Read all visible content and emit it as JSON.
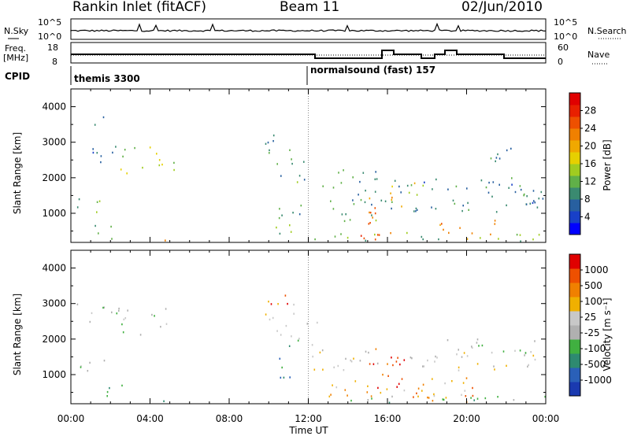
{
  "header": {
    "title": "Rankin Inlet (fitACF)",
    "beam": "Beam 11",
    "date": "02/Jun/2010"
  },
  "noise_panel": {
    "left_label": "N.Sky",
    "left_ticks": [
      "10^5",
      "10^0"
    ],
    "right_label": "N.Search",
    "right_ticks": [
      "10^5",
      "10^0"
    ]
  },
  "freq_panel": {
    "left_label_1": "Freq.",
    "left_label_2": "[MHz]",
    "left_ticks": [
      "18",
      "8"
    ],
    "right_label": "Nave",
    "right_ticks": [
      "60",
      "0"
    ]
  },
  "cpid_panel": {
    "label": "CPID",
    "programs": [
      {
        "name": "themis 3300",
        "start_hour": 0
      },
      {
        "name": "normalsound (fast) 157",
        "start_hour": 12
      }
    ]
  },
  "chart_data": [
    {
      "type": "heatmap",
      "title": "",
      "xlabel": "Time UT",
      "ylabel": "Slant Range [km]",
      "xlim_hours": [
        0,
        24
      ],
      "ylim": [
        180,
        4500
      ],
      "yticks": [
        1000,
        2000,
        3000,
        4000
      ],
      "xticks": [
        "00:00",
        "04:00",
        "08:00",
        "12:00",
        "16:00",
        "20:00",
        "00:00"
      ],
      "colorbar": {
        "label": "Power [dB]",
        "ticks": [
          "28",
          "24",
          "20",
          "16",
          "12",
          "8",
          "4"
        ],
        "colors": [
          "#0000ff",
          "#1840c8",
          "#2860a0",
          "#3a8a70",
          "#60b048",
          "#a0cc20",
          "#e6d000",
          "#f0a800",
          "#f08000",
          "#ee5000",
          "#e82000",
          "#e00000"
        ]
      },
      "blobs": [
        {
          "t": [
            0.3,
            2.5
          ],
          "r": [
            2400,
            3000
          ],
          "v": 6
        },
        {
          "t": [
            0.8,
            1.8
          ],
          "r": [
            3300,
            3700
          ],
          "v": 6
        },
        {
          "t": [
            2.3,
            5.3
          ],
          "r": [
            2100,
            2900
          ],
          "v": 14
        },
        {
          "t": [
            0.3,
            2.5
          ],
          "r": [
            1000,
            1400
          ],
          "v": 10
        },
        {
          "t": [
            1.2,
            2.6
          ],
          "r": [
            250,
            700
          ],
          "v": 12
        },
        {
          "t": [
            2.6,
            2.9
          ],
          "r": [
            190,
            450
          ],
          "v": 26
        },
        {
          "t": [
            4.6,
            5.0
          ],
          "r": [
            190,
            550
          ],
          "v": 26
        },
        {
          "t": [
            9.7,
            11.3
          ],
          "r": [
            2000,
            3200
          ],
          "v": 8
        },
        {
          "t": [
            10.0,
            11.8
          ],
          "r": [
            250,
            1200
          ],
          "v": 10
        },
        {
          "t": [
            11.2,
            12.0
          ],
          "r": [
            1600,
            2600
          ],
          "v": 9
        },
        {
          "t": [
            12.0,
            15.5
          ],
          "r": [
            1500,
            2200
          ],
          "v": 8
        },
        {
          "t": [
            12.2,
            16.0
          ],
          "r": [
            700,
            1400
          ],
          "v": 10
        },
        {
          "t": [
            12.0,
            24.0
          ],
          "r": [
            190,
            450
          ],
          "v": 12
        },
        {
          "t": [
            14.0,
            16.5
          ],
          "r": [
            190,
            500
          ],
          "v": 26
        },
        {
          "t": [
            15.0,
            17.0
          ],
          "r": [
            300,
            1500
          ],
          "v": 22
        },
        {
          "t": [
            16.0,
            18.0
          ],
          "r": [
            1500,
            2000
          ],
          "v": 18
        },
        {
          "t": [
            16.0,
            24.0
          ],
          "r": [
            1000,
            2000
          ],
          "v": 7
        },
        {
          "t": [
            18.5,
            21.5
          ],
          "r": [
            190,
            800
          ],
          "v": 22
        },
        {
          "t": [
            21.0,
            24.0
          ],
          "r": [
            1200,
            1800
          ],
          "v": 9
        },
        {
          "t": [
            20.5,
            22.5
          ],
          "r": [
            2400,
            3000
          ],
          "v": 6
        }
      ]
    },
    {
      "type": "heatmap",
      "title": "",
      "xlabel": "Time UT",
      "ylabel": "Slant Range [km]",
      "xlim_hours": [
        0,
        24
      ],
      "ylim": [
        180,
        4500
      ],
      "yticks": [
        1000,
        2000,
        3000,
        4000
      ],
      "xticks": [
        "00:00",
        "04:00",
        "08:00",
        "12:00",
        "16:00",
        "20:00",
        "00:00"
      ],
      "colorbar": {
        "label": "Velocity [m s⁻¹]",
        "ticks": [
          "1000",
          "500",
          "100",
          "25",
          "-25",
          "-100",
          "-500",
          "-1000"
        ],
        "colors": [
          "#1a3ab0",
          "#2a60b8",
          "#2e8a70",
          "#40b040",
          "#b0b0b0",
          "#c8c8c8",
          "#f0b000",
          "#f08000",
          "#ee5000",
          "#e00000"
        ]
      },
      "blobs": [
        {
          "t": [
            0.3,
            2.5
          ],
          "r": [
            2400,
            3000
          ],
          "v": 4
        },
        {
          "t": [
            2.3,
            5.3
          ],
          "r": [
            2100,
            2900
          ],
          "v": 4
        },
        {
          "t": [
            0.3,
            2.5
          ],
          "r": [
            1000,
            1400
          ],
          "v": 4
        },
        {
          "t": [
            1.2,
            2.6
          ],
          "r": [
            250,
            700
          ],
          "v": 2
        },
        {
          "t": [
            4.6,
            5.0
          ],
          "r": [
            190,
            550
          ],
          "v": 2
        },
        {
          "t": [
            9.7,
            11.3
          ],
          "r": [
            2000,
            3200
          ],
          "v": 5
        },
        {
          "t": [
            10.0,
            11.0
          ],
          "r": [
            2800,
            3400
          ],
          "v": 8
        },
        {
          "t": [
            10.5,
            11.5
          ],
          "r": [
            800,
            2000
          ],
          "v": 2
        },
        {
          "t": [
            11.5,
            12.5
          ],
          "r": [
            1800,
            2600
          ],
          "v": 5
        },
        {
          "t": [
            12.0,
            24.0
          ],
          "r": [
            1100,
            1700
          ],
          "v": 5
        },
        {
          "t": [
            12.5,
            20.0
          ],
          "r": [
            300,
            900
          ],
          "v": 6
        },
        {
          "t": [
            15.0,
            17.0
          ],
          "r": [
            300,
            1700
          ],
          "v": 8
        },
        {
          "t": [
            17.0,
            21.0
          ],
          "r": [
            200,
            700
          ],
          "v": 7
        },
        {
          "t": [
            12.0,
            24.0
          ],
          "r": [
            190,
            400
          ],
          "v": 3
        },
        {
          "t": [
            19.0,
            23.5
          ],
          "r": [
            1400,
            2000
          ],
          "v": 4
        }
      ]
    }
  ]
}
